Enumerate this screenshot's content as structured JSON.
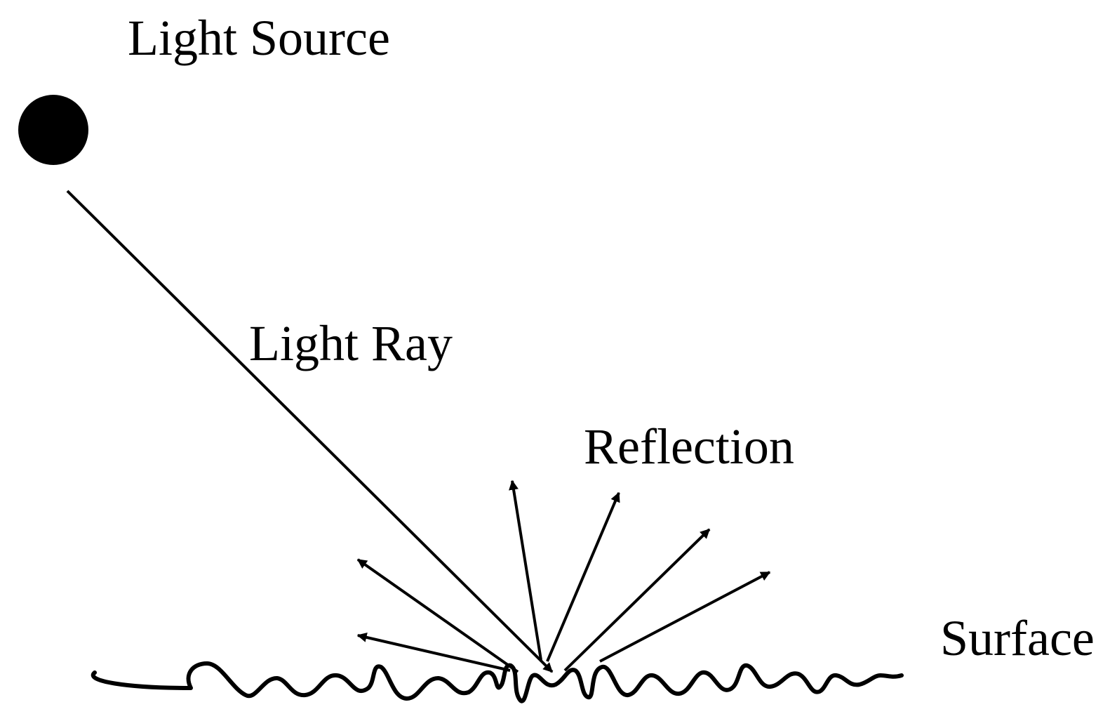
{
  "labels": {
    "light_source": "Light Source",
    "light_ray": "Light Ray",
    "reflection": "Reflection",
    "surface": "Surface"
  },
  "colors": {
    "ink": "#000000",
    "background": "#ffffff"
  }
}
